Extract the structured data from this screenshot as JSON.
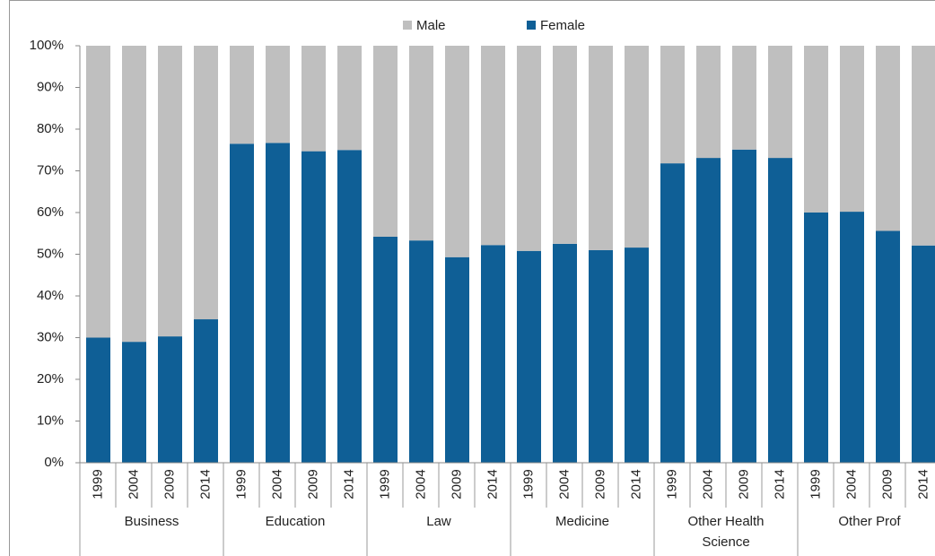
{
  "chart_data": {
    "type": "stacked_bar",
    "categories": [
      "1999",
      "2004",
      "2009",
      "2014",
      "1999",
      "2004",
      "2009",
      "2014",
      "1999",
      "2004",
      "2009",
      "2014",
      "1999",
      "2004",
      "2009",
      "2014",
      "1999",
      "2004",
      "2009",
      "2014",
      "1999",
      "2004",
      "2009",
      "2014"
    ],
    "groups": [
      "Business",
      "Education",
      "Law",
      "Medicine",
      "Other Health Science",
      "Other Prof"
    ],
    "series": [
      {
        "name": "Female",
        "color": "#0f5f96",
        "values": [
          30,
          29,
          30.3,
          34.4,
          76.5,
          76.7,
          74.7,
          75,
          54.2,
          53.3,
          49.3,
          52.2,
          50.8,
          52.5,
          51,
          51.6,
          71.8,
          73.1,
          75.1,
          73.1,
          60,
          60.2,
          55.6,
          52.1
        ]
      },
      {
        "name": "Male",
        "color": "#bfbfbf",
        "values": [
          70,
          71,
          69.7,
          65.6,
          23.5,
          23.3,
          25.3,
          25,
          45.8,
          46.7,
          50.7,
          47.8,
          49.2,
          47.5,
          49,
          48.4,
          28.2,
          26.9,
          24.9,
          26.9,
          40,
          39.8,
          44.4,
          47.9
        ]
      }
    ],
    "ylim": [
      0,
      100
    ],
    "yticks": [
      {
        "value": 0,
        "label": "0%"
      },
      {
        "value": 10,
        "label": "10%"
      },
      {
        "value": 20,
        "label": "20%"
      },
      {
        "value": 30,
        "label": "30%"
      },
      {
        "value": 40,
        "label": "40%"
      },
      {
        "value": 50,
        "label": "50%"
      },
      {
        "value": 60,
        "label": "60%"
      },
      {
        "value": 70,
        "label": "70%"
      },
      {
        "value": 80,
        "label": "80%"
      },
      {
        "value": 90,
        "label": "90%"
      },
      {
        "value": 100,
        "label": "100%"
      }
    ],
    "legend": "top"
  }
}
